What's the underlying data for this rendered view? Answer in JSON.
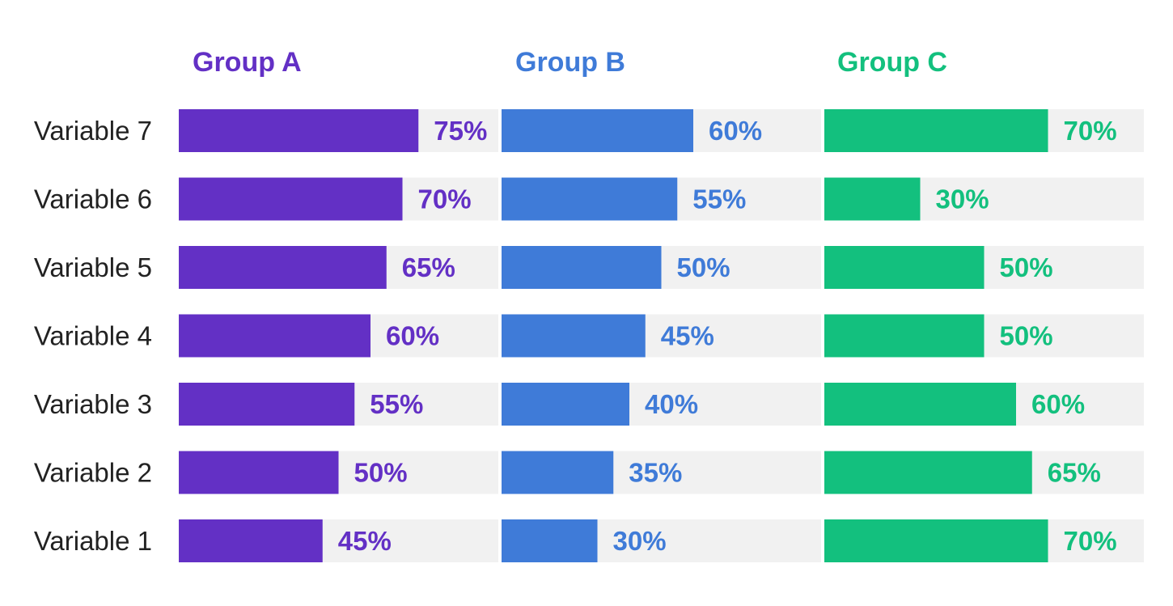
{
  "chart_data": {
    "type": "bar",
    "orientation": "horizontal",
    "categories": [
      "Variable 7",
      "Variable 6",
      "Variable 5",
      "Variable 4",
      "Variable 3",
      "Variable 2",
      "Variable 1"
    ],
    "series": [
      {
        "name": "Group A",
        "color": "#6330C5",
        "values": [
          75,
          70,
          65,
          60,
          55,
          50,
          45
        ],
        "labels": [
          "75%",
          "70%",
          "65%",
          "60%",
          "55%",
          "50%",
          "45%"
        ]
      },
      {
        "name": "Group B",
        "color": "#3F7BD8",
        "values": [
          60,
          55,
          50,
          45,
          40,
          35,
          30
        ],
        "labels": [
          "60%",
          "55%",
          "50%",
          "45%",
          "40%",
          "35%",
          "30%"
        ]
      },
      {
        "name": "Group C",
        "color": "#13C07E",
        "values": [
          70,
          30,
          50,
          50,
          60,
          65,
          70
        ],
        "labels": [
          "70%",
          "30%",
          "50%",
          "50%",
          "60%",
          "65%",
          "70%"
        ]
      }
    ],
    "xlim": [
      0,
      100
    ],
    "unit": "%",
    "background_track_color": "#F1F1F1",
    "grid": false,
    "title": "",
    "xlabel": "",
    "ylabel": ""
  }
}
